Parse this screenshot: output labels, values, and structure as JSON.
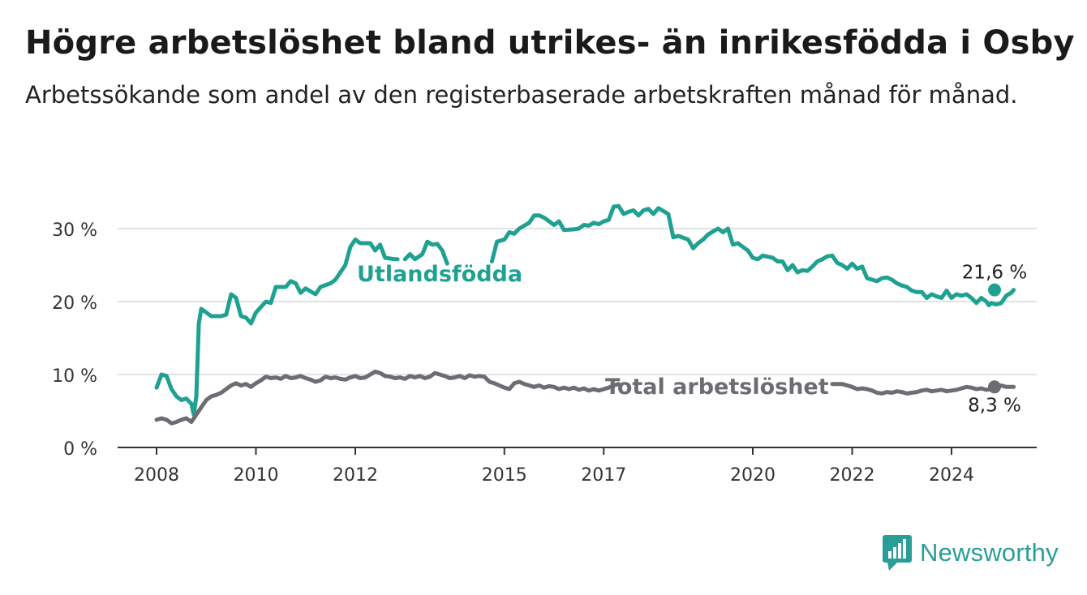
{
  "title": "Högre arbetslöshet bland utrikes- än inrikesfödda i Osby",
  "subtitle": "Arbetssökande som andel av den registerbaserade arbetskraften månad för månad.",
  "brand": {
    "name": "Newsworthy",
    "icon": "newsworthy-logo-icon",
    "color": "#2a9d96"
  },
  "chart_data": {
    "type": "line",
    "xlabel": "",
    "ylabel": "",
    "xlim": [
      2008,
      2024.9
    ],
    "ylim": [
      0,
      33
    ],
    "grid": true,
    "y_ticks": [
      0,
      10,
      20,
      30
    ],
    "y_tick_labels": [
      "0 %",
      "10 %",
      "20 %",
      "30 %"
    ],
    "x_ticks": [
      2008,
      2010,
      2012,
      2015,
      2017,
      2020,
      2022,
      2024
    ],
    "x_tick_labels": [
      "2008",
      "2010",
      "2012",
      "2015",
      "2017",
      "2020",
      "2022",
      "2024"
    ],
    "series": [
      {
        "name": "Utlandsfödda",
        "color": "#1fa192",
        "end_label": "21,6 %",
        "points": [
          [
            2008.0,
            8.2
          ],
          [
            2008.1,
            10.0
          ],
          [
            2008.2,
            9.8
          ],
          [
            2008.3,
            8.0
          ],
          [
            2008.4,
            7.0
          ],
          [
            2008.5,
            6.5
          ],
          [
            2008.6,
            6.7
          ],
          [
            2008.7,
            6.0
          ],
          [
            2008.75,
            4.5
          ],
          [
            2008.8,
            7.0
          ],
          [
            2008.85,
            17.0
          ],
          [
            2008.9,
            19.0
          ],
          [
            2009.0,
            18.5
          ],
          [
            2009.1,
            18.0
          ],
          [
            2009.3,
            18.0
          ],
          [
            2009.4,
            18.2
          ],
          [
            2009.5,
            21.0
          ],
          [
            2009.6,
            20.5
          ],
          [
            2009.7,
            18.0
          ],
          [
            2009.8,
            17.8
          ],
          [
            2009.9,
            17.0
          ],
          [
            2010.0,
            18.5
          ],
          [
            2010.2,
            20.0
          ],
          [
            2010.3,
            19.8
          ],
          [
            2010.4,
            22.0
          ],
          [
            2010.6,
            22.0
          ],
          [
            2010.7,
            22.8
          ],
          [
            2010.8,
            22.5
          ],
          [
            2010.9,
            21.2
          ],
          [
            2011.0,
            21.8
          ],
          [
            2011.2,
            21.0
          ],
          [
            2011.3,
            22.0
          ],
          [
            2011.5,
            22.5
          ],
          [
            2011.6,
            23.0
          ],
          [
            2011.8,
            25.0
          ],
          [
            2011.9,
            27.5
          ],
          [
            2012.0,
            28.5
          ],
          [
            2012.1,
            28.0
          ],
          [
            2012.3,
            28.0
          ],
          [
            2012.4,
            27.0
          ],
          [
            2012.5,
            27.8
          ],
          [
            2012.6,
            26.0
          ],
          [
            2012.8,
            25.8
          ],
          [
            2012.85,
            25.8
          ]
        ],
        "points_2": [
          [
            2013.0,
            25.8
          ],
          [
            2013.1,
            26.5
          ],
          [
            2013.2,
            25.8
          ],
          [
            2013.35,
            26.5
          ],
          [
            2013.45,
            28.2
          ],
          [
            2013.55,
            27.8
          ],
          [
            2013.65,
            27.9
          ],
          [
            2013.75,
            27.0
          ],
          [
            2013.85,
            25.2
          ]
        ],
        "points_3": [
          [
            2014.75,
            25.5
          ],
          [
            2014.85,
            28.2
          ],
          [
            2015.0,
            28.5
          ],
          [
            2015.1,
            29.5
          ],
          [
            2015.2,
            29.3
          ],
          [
            2015.3,
            30.0
          ],
          [
            2015.5,
            30.8
          ],
          [
            2015.6,
            31.8
          ],
          [
            2015.7,
            31.8
          ],
          [
            2015.8,
            31.5
          ],
          [
            2015.9,
            31.0
          ],
          [
            2016.0,
            30.5
          ],
          [
            2016.1,
            31.0
          ],
          [
            2016.2,
            29.8
          ],
          [
            2016.4,
            29.9
          ],
          [
            2016.5,
            30.0
          ],
          [
            2016.6,
            30.5
          ],
          [
            2016.7,
            30.4
          ],
          [
            2016.8,
            30.8
          ],
          [
            2016.9,
            30.6
          ],
          [
            2017.0,
            31.0
          ],
          [
            2017.1,
            31.2
          ],
          [
            2017.2,
            33.0
          ],
          [
            2017.3,
            33.1
          ],
          [
            2017.4,
            32.0
          ],
          [
            2017.5,
            32.3
          ],
          [
            2017.6,
            32.5
          ],
          [
            2017.7,
            31.8
          ],
          [
            2017.8,
            32.5
          ],
          [
            2017.9,
            32.7
          ],
          [
            2018.0,
            32.0
          ],
          [
            2018.1,
            32.8
          ],
          [
            2018.3,
            32.0
          ],
          [
            2018.4,
            28.8
          ],
          [
            2018.5,
            29.0
          ],
          [
            2018.7,
            28.5
          ],
          [
            2018.8,
            27.3
          ],
          [
            2018.9,
            28.0
          ],
          [
            2019.0,
            28.5
          ],
          [
            2019.1,
            29.2
          ],
          [
            2019.3,
            30.0
          ],
          [
            2019.4,
            29.5
          ],
          [
            2019.5,
            30.0
          ],
          [
            2019.6,
            27.8
          ],
          [
            2019.7,
            28.0
          ],
          [
            2019.8,
            27.5
          ],
          [
            2019.9,
            27.0
          ],
          [
            2020.0,
            26.0
          ],
          [
            2020.1,
            25.8
          ],
          [
            2020.2,
            26.3
          ],
          [
            2020.4,
            26.0
          ],
          [
            2020.5,
            25.5
          ],
          [
            2020.6,
            25.5
          ],
          [
            2020.7,
            24.3
          ],
          [
            2020.8,
            25.0
          ],
          [
            2020.9,
            24.0
          ],
          [
            2021.0,
            24.3
          ],
          [
            2021.1,
            24.2
          ],
          [
            2021.2,
            24.8
          ],
          [
            2021.3,
            25.5
          ],
          [
            2021.4,
            25.8
          ],
          [
            2021.5,
            26.2
          ],
          [
            2021.6,
            26.3
          ],
          [
            2021.7,
            25.3
          ],
          [
            2021.8,
            25.0
          ],
          [
            2021.9,
            24.5
          ],
          [
            2022.0,
            25.2
          ],
          [
            2022.1,
            24.5
          ],
          [
            2022.2,
            24.8
          ],
          [
            2022.3,
            23.2
          ],
          [
            2022.4,
            23.0
          ],
          [
            2022.5,
            22.8
          ],
          [
            2022.6,
            23.2
          ],
          [
            2022.7,
            23.3
          ],
          [
            2022.8,
            23.0
          ],
          [
            2022.9,
            22.5
          ],
          [
            2023.0,
            22.2
          ],
          [
            2023.1,
            22.0
          ],
          [
            2023.2,
            21.5
          ],
          [
            2023.3,
            21.3
          ],
          [
            2023.4,
            21.3
          ],
          [
            2023.5,
            20.5
          ],
          [
            2023.6,
            21.0
          ],
          [
            2023.7,
            20.7
          ],
          [
            2023.8,
            20.5
          ],
          [
            2023.9,
            21.5
          ],
          [
            2024.0,
            20.5
          ],
          [
            2024.1,
            21.0
          ],
          [
            2024.2,
            20.8
          ],
          [
            2024.3,
            21.0
          ],
          [
            2024.4,
            20.5
          ],
          [
            2024.5,
            19.8
          ],
          [
            2024.6,
            20.5
          ],
          [
            2024.7,
            20.0
          ],
          [
            2024.75,
            19.5
          ],
          [
            2024.8,
            19.8
          ],
          [
            2024.9,
            19.6
          ],
          [
            2025.0,
            19.8
          ],
          [
            2025.1,
            20.8
          ],
          [
            2025.15,
            21.0
          ],
          [
            2025.2,
            21.2
          ],
          [
            2025.25,
            21.6
          ]
        ]
      },
      {
        "name": "Total arbetslöshet",
        "color": "#6e6c73",
        "end_label": "8,3 %",
        "points": [
          [
            2008.0,
            3.8
          ],
          [
            2008.1,
            4.0
          ],
          [
            2008.2,
            3.8
          ],
          [
            2008.3,
            3.3
          ],
          [
            2008.4,
            3.5
          ],
          [
            2008.5,
            3.8
          ],
          [
            2008.6,
            4.0
          ],
          [
            2008.7,
            3.5
          ],
          [
            2008.8,
            4.5
          ],
          [
            2008.9,
            5.5
          ],
          [
            2009.0,
            6.5
          ],
          [
            2009.1,
            7.0
          ],
          [
            2009.2,
            7.2
          ],
          [
            2009.3,
            7.5
          ],
          [
            2009.4,
            8.0
          ],
          [
            2009.5,
            8.5
          ],
          [
            2009.6,
            8.8
          ],
          [
            2009.7,
            8.5
          ],
          [
            2009.8,
            8.7
          ],
          [
            2009.9,
            8.3
          ],
          [
            2010.0,
            8.8
          ],
          [
            2010.1,
            9.2
          ],
          [
            2010.2,
            9.7
          ],
          [
            2010.3,
            9.5
          ],
          [
            2010.4,
            9.6
          ],
          [
            2010.5,
            9.4
          ],
          [
            2010.6,
            9.8
          ],
          [
            2010.7,
            9.5
          ],
          [
            2010.8,
            9.6
          ],
          [
            2010.9,
            9.8
          ],
          [
            2011.0,
            9.5
          ],
          [
            2011.1,
            9.3
          ],
          [
            2011.2,
            9.0
          ],
          [
            2011.3,
            9.2
          ],
          [
            2011.4,
            9.7
          ],
          [
            2011.5,
            9.5
          ],
          [
            2011.6,
            9.6
          ],
          [
            2011.7,
            9.4
          ],
          [
            2011.8,
            9.3
          ],
          [
            2011.9,
            9.6
          ],
          [
            2012.0,
            9.8
          ],
          [
            2012.1,
            9.5
          ],
          [
            2012.2,
            9.6
          ],
          [
            2012.3,
            10.0
          ],
          [
            2012.4,
            10.4
          ],
          [
            2012.5,
            10.2
          ],
          [
            2012.6,
            9.8
          ],
          [
            2012.7,
            9.7
          ],
          [
            2012.8,
            9.5
          ],
          [
            2012.9,
            9.6
          ],
          [
            2013.0,
            9.4
          ],
          [
            2013.1,
            9.8
          ],
          [
            2013.2,
            9.6
          ],
          [
            2013.3,
            9.8
          ],
          [
            2013.4,
            9.5
          ],
          [
            2013.5,
            9.7
          ],
          [
            2013.6,
            10.2
          ],
          [
            2013.7,
            10.0
          ],
          [
            2013.8,
            9.8
          ],
          [
            2013.9,
            9.5
          ],
          [
            2014.0,
            9.6
          ],
          [
            2014.1,
            9.8
          ],
          [
            2014.2,
            9.5
          ],
          [
            2014.3,
            9.9
          ],
          [
            2014.4,
            9.7
          ],
          [
            2014.5,
            9.8
          ],
          [
            2014.6,
            9.7
          ],
          [
            2014.7,
            9.0
          ],
          [
            2014.8,
            8.8
          ],
          [
            2014.9,
            8.5
          ],
          [
            2015.0,
            8.2
          ],
          [
            2015.1,
            8.0
          ],
          [
            2015.2,
            8.8
          ],
          [
            2015.3,
            9.0
          ],
          [
            2015.4,
            8.7
          ],
          [
            2015.5,
            8.5
          ],
          [
            2015.6,
            8.3
          ],
          [
            2015.7,
            8.5
          ],
          [
            2015.8,
            8.2
          ],
          [
            2015.9,
            8.4
          ],
          [
            2016.0,
            8.3
          ],
          [
            2016.1,
            8.0
          ],
          [
            2016.2,
            8.2
          ],
          [
            2016.3,
            8.0
          ],
          [
            2016.4,
            8.2
          ],
          [
            2016.5,
            7.9
          ],
          [
            2016.6,
            8.1
          ],
          [
            2016.7,
            7.8
          ],
          [
            2016.8,
            8.0
          ],
          [
            2016.9,
            7.8
          ],
          [
            2017.0,
            8.0
          ],
          [
            2017.1,
            8.2
          ],
          [
            2017.2,
            8.5
          ],
          [
            2017.3,
            8.7
          ]
        ],
        "points_2": [
          [
            2021.6,
            8.7
          ],
          [
            2021.7,
            8.7
          ],
          [
            2021.8,
            8.7
          ],
          [
            2021.9,
            8.5
          ],
          [
            2022.0,
            8.3
          ],
          [
            2022.1,
            8.0
          ],
          [
            2022.2,
            8.1
          ],
          [
            2022.3,
            8.0
          ],
          [
            2022.4,
            7.8
          ],
          [
            2022.5,
            7.5
          ],
          [
            2022.6,
            7.4
          ],
          [
            2022.7,
            7.6
          ],
          [
            2022.8,
            7.5
          ],
          [
            2022.9,
            7.7
          ],
          [
            2023.0,
            7.6
          ],
          [
            2023.1,
            7.4
          ],
          [
            2023.2,
            7.5
          ],
          [
            2023.3,
            7.6
          ],
          [
            2023.4,
            7.8
          ],
          [
            2023.5,
            7.9
          ],
          [
            2023.6,
            7.7
          ],
          [
            2023.7,
            7.8
          ],
          [
            2023.8,
            7.9
          ],
          [
            2023.9,
            7.7
          ],
          [
            2024.0,
            7.8
          ],
          [
            2024.1,
            7.9
          ],
          [
            2024.2,
            8.1
          ],
          [
            2024.3,
            8.3
          ],
          [
            2024.4,
            8.2
          ],
          [
            2024.5,
            8.0
          ],
          [
            2024.6,
            8.1
          ],
          [
            2024.7,
            7.9
          ],
          [
            2024.8,
            8.0
          ],
          [
            2024.9,
            8.2
          ],
          [
            2025.0,
            8.5
          ],
          [
            2025.1,
            8.3
          ],
          [
            2025.2,
            8.3
          ],
          [
            2025.25,
            8.3
          ]
        ]
      }
    ],
    "annotations": [
      {
        "text": "Utlandsfödda",
        "series": "Utlandsfödda"
      },
      {
        "text": "Total arbetslöshet",
        "series": "Total arbetslöshet"
      }
    ]
  }
}
